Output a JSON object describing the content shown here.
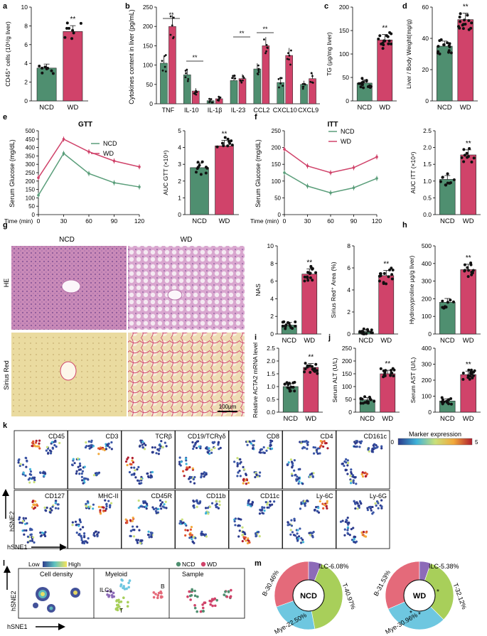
{
  "colors": {
    "ncd": "#4f8f70",
    "wd": "#d0436a",
    "ncd_line": "#5a9e7a",
    "wd_line": "#d0436a"
  },
  "common": {
    "ncd": "NCD",
    "wd": "WD",
    "sig": "**"
  },
  "panels": {
    "a": {
      "letter": "a",
      "ylabel": "CD45⁺ cells (10⁶/g liver)",
      "yticks": [
        "0",
        "2",
        "4",
        "6",
        "8",
        "10"
      ]
    },
    "b": {
      "letter": "b",
      "ylabel": "Cytokines content in liver (pg/mL)",
      "yticks": [
        "0",
        "50",
        "100",
        "150",
        "200",
        "250"
      ],
      "cats": [
        "TNF",
        "IL-10",
        "IL-1β",
        "IL-23",
        "CCL2",
        "CXCL10",
        "CXCL9"
      ]
    },
    "c": {
      "letter": "c",
      "ylabel": "TG (μg/mg liver)",
      "yticks": [
        "0",
        "50",
        "100",
        "150",
        "200"
      ]
    },
    "d": {
      "letter": "d",
      "ylabel": "Liver / Body Weight(mg/g)",
      "yticks": [
        "0",
        "20",
        "40",
        "60"
      ]
    },
    "e": {
      "letter": "e",
      "title": "GTT",
      "ylabel": "Serum Glucose (mg/dL)",
      "yticks": [
        "0",
        "50",
        "100",
        "150",
        "200",
        "250",
        "300",
        "350",
        "400",
        "450",
        "500"
      ],
      "xlabel": "Time (min)",
      "xticks": [
        "0",
        "30",
        "60",
        "90",
        "120"
      ],
      "auc_ylabel": "AUC GTT (×10⁴)",
      "auc_yticks": [
        "0",
        "1",
        "2",
        "3",
        "4",
        "5"
      ]
    },
    "f": {
      "letter": "f",
      "title": "ITT",
      "ylabel": "Serum Glucose (mg/dL)",
      "yticks": [
        "0",
        "50",
        "100",
        "150",
        "200",
        "250"
      ],
      "xlabel": "Time (min)",
      "xticks": [
        "0",
        "30",
        "60",
        "90",
        "120"
      ],
      "auc_ylabel": "AUC ITT (×10⁴)",
      "auc_yticks": [
        "0.0",
        "0.5",
        "1.0",
        "1.5",
        "2.0",
        "2.5"
      ]
    },
    "g": {
      "letter": "g",
      "col_ncd": "NCD",
      "col_wd": "WD",
      "row_he": "HE",
      "row_sr": "Sirius Red",
      "scale": "100μm",
      "nas_label": "NAS",
      "nas_yticks": [
        "0",
        "2",
        "4",
        "6",
        "8",
        "10"
      ],
      "sr_label": "Sirius Red⁺ Area (%)",
      "sr_yticks": [
        "0",
        "2",
        "4",
        "6",
        "8"
      ]
    },
    "h": {
      "letter": "h",
      "ylabel": "Hydroxyproline μg/g liver)",
      "yticks": [
        "0",
        "100",
        "200",
        "300",
        "400",
        "500"
      ]
    },
    "i": {
      "letter": "i",
      "ylabel": "Relative ACTA2 mRNA level",
      "yticks": [
        "0.0",
        "0.5",
        "1.0",
        "1.5",
        "2.0",
        "2.5"
      ]
    },
    "j": {
      "letter": "j",
      "alt_label": "Serum ALT (U/L)",
      "alt_yticks": [
        "0",
        "50",
        "100",
        "150",
        "200",
        "250"
      ],
      "ast_label": "Serum AST (U/L)",
      "ast_yticks": [
        "0",
        "100",
        "200",
        "300",
        "400"
      ]
    },
    "k": {
      "letter": "k",
      "row1": [
        "CD45",
        "CD3",
        "TCRβ",
        "CD19/TCRγδ",
        "CD8",
        "CD4",
        "CD161c"
      ],
      "row2": [
        "CD127",
        "MHC-II",
        "CD45R",
        "CD11b",
        "CD11c",
        "Ly-6C",
        "Ly-6G"
      ],
      "legend_title": "Marker  expression",
      "legend_min": "0",
      "legend_max": "5",
      "ylab": "hSNE2",
      "xlab": "hSNE1"
    },
    "l": {
      "letter": "l",
      "low": "Low",
      "high": "High",
      "sub1": "Cell density",
      "sub2": "Myeloid",
      "sub3": "Sample",
      "lab_ilc": "ILCs",
      "lab_b": "B",
      "lab_t": "T",
      "leg_ncd": "NCD",
      "leg_wd": "WD",
      "ylab": "hSNE2",
      "xlab": "hSNE1"
    },
    "m": {
      "letter": "m",
      "ncd": {
        "center": "NCD",
        "b": "B-30.46%",
        "ilc": "ILC-6.08%",
        "t": "T-40.97%",
        "mye": "Mye-22.50%"
      },
      "wd": {
        "center": "WD",
        "b": "B-31.53%",
        "ilc": "ILC-5.38%",
        "t": "T-32.12%",
        "mye": "Mye-30.96%"
      },
      "star": "*"
    }
  },
  "chart_data": [
    {
      "panel": "a",
      "type": "bar",
      "categories": [
        "NCD",
        "WD"
      ],
      "values": [
        3.5,
        7.4
      ],
      "ylim": [
        0,
        10
      ]
    },
    {
      "panel": "b",
      "type": "bar",
      "categories": [
        "TNF",
        "IL-10",
        "IL-1β",
        "IL-23",
        "CCL2",
        "CXCL10",
        "CXCL9"
      ],
      "series": [
        {
          "name": "NCD",
          "values": [
            105,
            75,
            8,
            60,
            90,
            55,
            50
          ]
        },
        {
          "name": "WD",
          "values": [
            200,
            33,
            13,
            65,
            150,
            125,
            65
          ]
        }
      ],
      "ylim": [
        0,
        250
      ]
    },
    {
      "panel": "c",
      "type": "bar",
      "categories": [
        "NCD",
        "WD"
      ],
      "values": [
        38,
        130
      ],
      "ylim": [
        0,
        200
      ]
    },
    {
      "panel": "d",
      "type": "bar",
      "categories": [
        "NCD",
        "WD"
      ],
      "values": [
        35,
        52
      ],
      "ylim": [
        0,
        60
      ]
    },
    {
      "panel": "e",
      "type": "line",
      "x": [
        0,
        30,
        60,
        90,
        120
      ],
      "series": [
        {
          "name": "NCD",
          "values": [
            115,
            365,
            245,
            190,
            165
          ]
        },
        {
          "name": "WD",
          "values": [
            220,
            450,
            375,
            320,
            285
          ]
        }
      ],
      "ylim": [
        0,
        500
      ]
    },
    {
      "panel": "e-auc",
      "type": "bar",
      "categories": [
        "NCD",
        "WD"
      ],
      "values": [
        2.8,
        4.1
      ],
      "ylim": [
        0,
        5
      ]
    },
    {
      "panel": "f",
      "type": "line",
      "x": [
        0,
        30,
        60,
        90,
        120
      ],
      "series": [
        {
          "name": "NCD",
          "values": [
            125,
            85,
            65,
            80,
            108
          ]
        },
        {
          "name": "WD",
          "values": [
            195,
            145,
            125,
            140,
            172
          ]
        }
      ],
      "ylim": [
        0,
        250
      ]
    },
    {
      "panel": "f-auc",
      "type": "bar",
      "categories": [
        "NCD",
        "WD"
      ],
      "values": [
        1.05,
        1.78
      ],
      "ylim": [
        0,
        2.5
      ]
    },
    {
      "panel": "g-nas",
      "type": "bar",
      "categories": [
        "NCD",
        "WD"
      ],
      "values": [
        1.0,
        6.8
      ],
      "ylim": [
        0,
        10
      ]
    },
    {
      "panel": "g-sr",
      "type": "bar",
      "categories": [
        "NCD",
        "WD"
      ],
      "values": [
        0.2,
        5.3
      ],
      "ylim": [
        0,
        8
      ]
    },
    {
      "panel": "h",
      "type": "bar",
      "categories": [
        "NCD",
        "WD"
      ],
      "values": [
        180,
        365
      ],
      "ylim": [
        0,
        500
      ]
    },
    {
      "panel": "i",
      "type": "bar",
      "categories": [
        "NCD",
        "WD"
      ],
      "values": [
        1.0,
        1.75
      ],
      "ylim": [
        0,
        2.5
      ]
    },
    {
      "panel": "j-alt",
      "type": "bar",
      "categories": [
        "NCD",
        "WD"
      ],
      "values": [
        48,
        150
      ],
      "ylim": [
        0,
        250
      ]
    },
    {
      "panel": "j-ast",
      "type": "bar",
      "categories": [
        "NCD",
        "WD"
      ],
      "values": [
        70,
        235
      ],
      "ylim": [
        0,
        400
      ]
    },
    {
      "panel": "m-ncd",
      "type": "pie",
      "categories": [
        "B",
        "ILC",
        "T",
        "Mye"
      ],
      "values": [
        30.46,
        6.08,
        40.97,
        22.5
      ]
    },
    {
      "panel": "m-wd",
      "type": "pie",
      "categories": [
        "B",
        "ILC",
        "T",
        "Mye"
      ],
      "values": [
        31.53,
        5.38,
        32.12,
        30.96
      ]
    }
  ]
}
